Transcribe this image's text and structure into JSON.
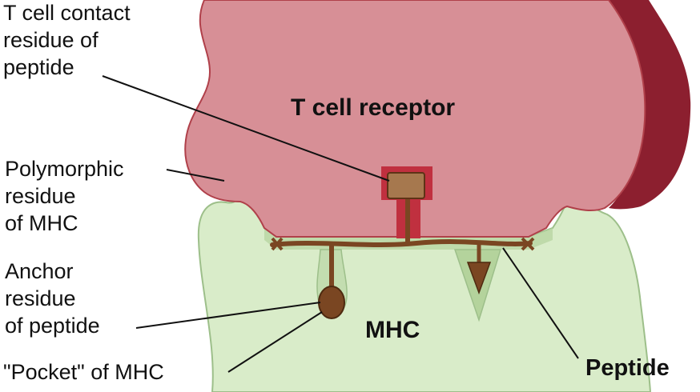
{
  "labels": {
    "tcr": "T cell receptor",
    "mhc": "MHC",
    "peptide": "Peptide",
    "tcell_contact": [
      "T cell contact",
      "residue of",
      "peptide"
    ],
    "polymorphic": [
      "Polymorphic",
      "residue",
      "of MHC"
    ],
    "anchor": [
      "Anchor",
      "residue",
      "of peptide"
    ],
    "pocket": "\"Pocket\" of MHC"
  },
  "colors": {
    "tcr_fill": "#d78f96",
    "tcr_edge": "#b0404a",
    "tcr_dark": "#8c1f2f",
    "mhc_fill": "#d9ecc9",
    "mhc_edge": "#9dbf8a",
    "peptide": "#7a4622",
    "peptide_light": "#a6784e",
    "leader": "#111111"
  }
}
